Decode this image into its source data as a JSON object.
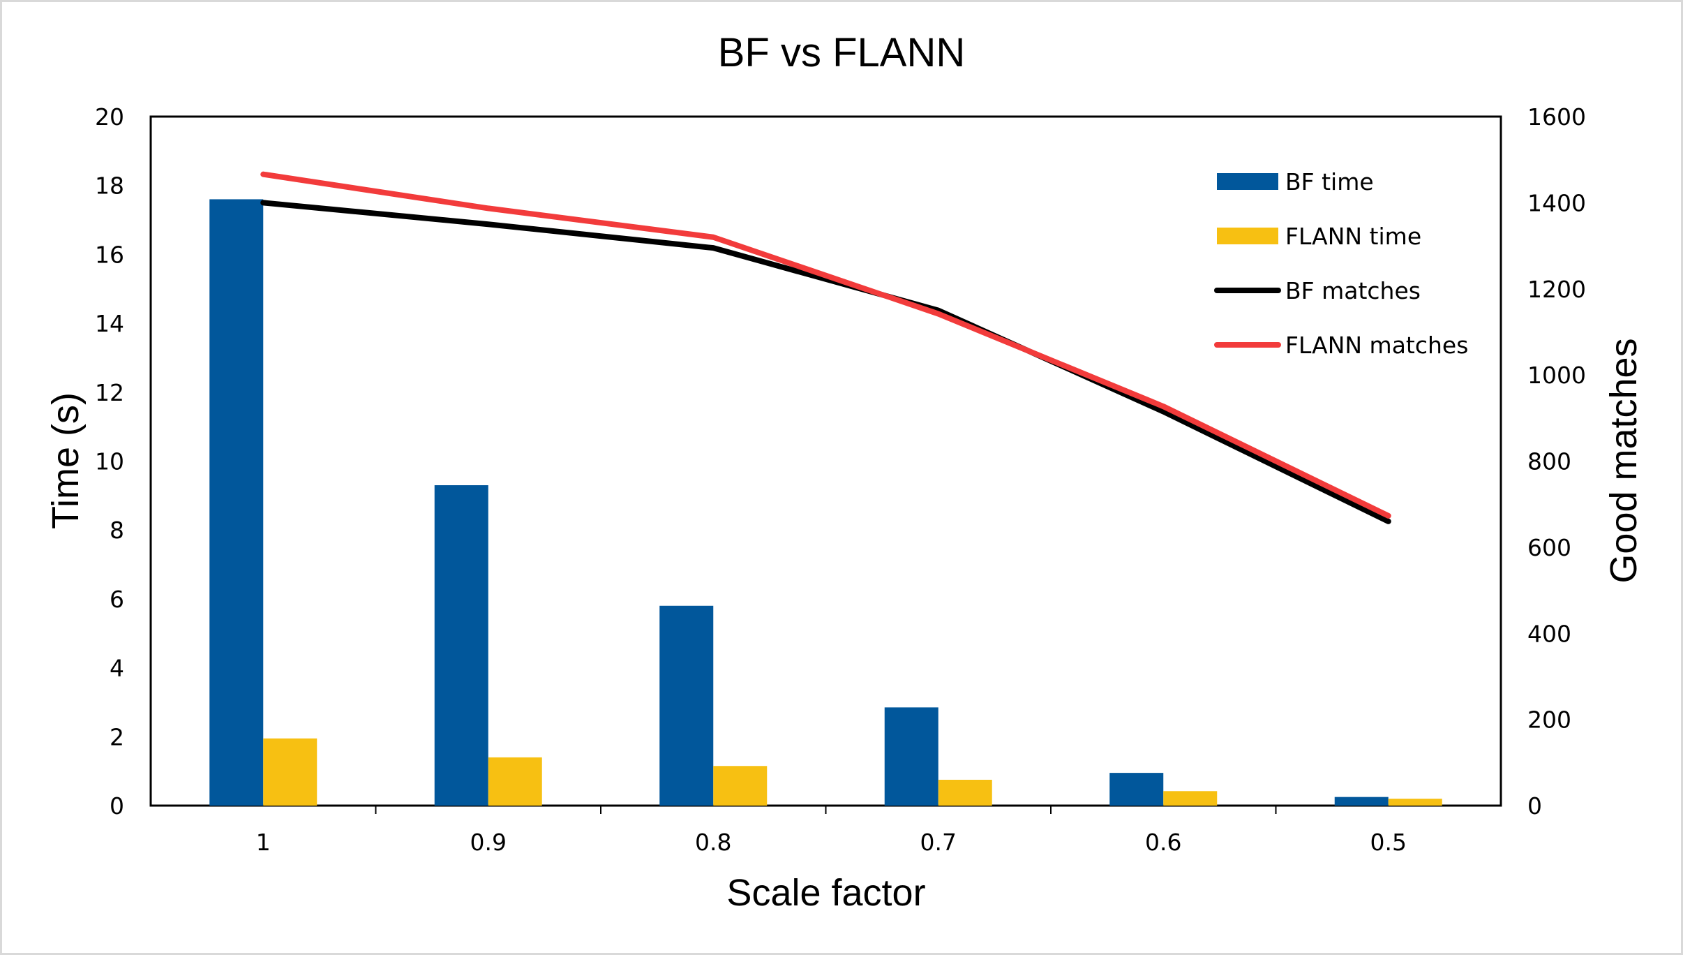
{
  "chart_data": {
    "type": "bar",
    "title": "BF vs FLANN",
    "xlabel": "Scale factor",
    "ylabel": "Time (s)",
    "y2label": "Good matches",
    "categories": [
      "1",
      "0.9",
      "0.8",
      "0.7",
      "0.6",
      "0.5"
    ],
    "ylim": [
      0,
      20
    ],
    "yticks": [
      0,
      2,
      4,
      6,
      8,
      10,
      12,
      14,
      16,
      18,
      20
    ],
    "y2lim": [
      0,
      1600
    ],
    "y2ticks": [
      0,
      200,
      400,
      600,
      800,
      1000,
      1200,
      1400,
      1600
    ],
    "grid": false,
    "legend_position": "top-right",
    "series": [
      {
        "name": "BF time",
        "kind": "bar",
        "axis": "left",
        "color": "#01579B",
        "values": [
          17.6,
          9.3,
          5.8,
          2.85,
          0.95,
          0.25
        ]
      },
      {
        "name": "FLANN time",
        "kind": "bar",
        "axis": "left",
        "color": "#F7C012",
        "values": [
          1.95,
          1.4,
          1.15,
          0.75,
          0.42,
          0.2
        ]
      },
      {
        "name": "BF matches",
        "kind": "line",
        "axis": "right",
        "color": "#000000",
        "values": [
          1400,
          1350,
          1295,
          1150,
          915,
          660
        ]
      },
      {
        "name": "FLANN matches",
        "kind": "line",
        "axis": "right",
        "color": "#F23B3B",
        "values": [
          1466,
          1387,
          1320,
          1142,
          927,
          673
        ]
      }
    ]
  }
}
